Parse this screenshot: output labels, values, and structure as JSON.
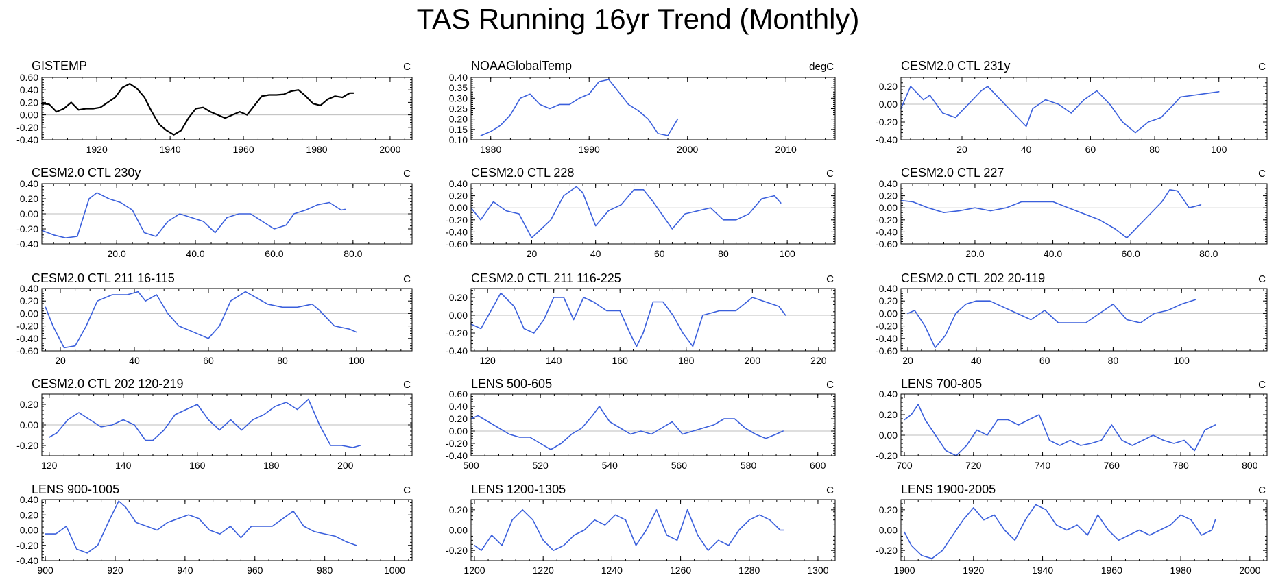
{
  "title": "TAS Running 16yr Trend (Monthly)",
  "colors": {
    "observed": "#000000",
    "model": "#3a5fdc",
    "zero": "#bdbdbd"
  },
  "chart_data": [
    {
      "type": "line",
      "title": "GISTEMP",
      "unit": "C",
      "color": "#000000",
      "xlim": [
        1905,
        2006
      ],
      "ylim": [
        -0.4,
        0.6
      ],
      "xticks": [
        1920,
        1940,
        1960,
        1980,
        2000
      ],
      "xdec": 0,
      "yticks": [
        -0.4,
        -0.2,
        0.0,
        0.2,
        0.4,
        0.6
      ],
      "ydec": 2,
      "x": [
        1905,
        1907,
        1909,
        1911,
        1913,
        1915,
        1917,
        1919,
        1921,
        1923,
        1925,
        1927,
        1929,
        1931,
        1933,
        1935,
        1937,
        1939,
        1941,
        1943,
        1945,
        1947,
        1949,
        1951,
        1953,
        1955,
        1957,
        1959,
        1961,
        1963,
        1965,
        1967,
        1969,
        1971,
        1973,
        1975,
        1977,
        1979,
        1981,
        1983,
        1985,
        1987,
        1989,
        1990
      ],
      "y": [
        0.18,
        0.17,
        0.05,
        0.1,
        0.2,
        0.08,
        0.1,
        0.1,
        0.12,
        0.2,
        0.28,
        0.44,
        0.5,
        0.42,
        0.28,
        0.05,
        -0.15,
        -0.25,
        -0.32,
        -0.25,
        -0.05,
        0.1,
        0.12,
        0.05,
        0.0,
        -0.05,
        0.0,
        0.05,
        0.0,
        0.15,
        0.3,
        0.32,
        0.32,
        0.33,
        0.38,
        0.4,
        0.3,
        0.18,
        0.15,
        0.25,
        0.3,
        0.28,
        0.35,
        0.35
      ]
    },
    {
      "type": "line",
      "title": "NOAAGlobalTemp",
      "unit": "degC",
      "color": "#3a5fdc",
      "xlim": [
        1978,
        2015
      ],
      "ylim": [
        0.1,
        0.4
      ],
      "xticks": [
        1980,
        1990,
        2000,
        2010
      ],
      "xdec": 0,
      "yticks": [
        0.1,
        0.15,
        0.2,
        0.25,
        0.3,
        0.35,
        0.4
      ],
      "ydec": 2,
      "x": [
        1979,
        1980,
        1981,
        1982,
        1983,
        1984,
        1985,
        1986,
        1987,
        1988,
        1989,
        1990,
        1991,
        1992,
        1993,
        1994,
        1995,
        1996,
        1997,
        1998,
        1999
      ],
      "y": [
        0.12,
        0.14,
        0.17,
        0.22,
        0.3,
        0.32,
        0.27,
        0.25,
        0.27,
        0.27,
        0.3,
        0.32,
        0.38,
        0.39,
        0.33,
        0.27,
        0.24,
        0.2,
        0.13,
        0.12,
        0.2
      ]
    },
    {
      "type": "line",
      "title": "CESM2.0 CTL 231y",
      "unit": "C",
      "color": "#3a5fdc",
      "xlim": [
        1,
        115
      ],
      "ylim": [
        -0.4,
        0.3
      ],
      "xticks": [
        20,
        40,
        60,
        80,
        100
      ],
      "xdec": 0,
      "yticks": [
        -0.4,
        -0.2,
        0.0,
        0.2
      ],
      "ydec": 2,
      "x": [
        1,
        4,
        8,
        10,
        14,
        18,
        22,
        26,
        28,
        32,
        36,
        40,
        42,
        46,
        50,
        54,
        58,
        62,
        66,
        70,
        74,
        78,
        82,
        86,
        88,
        92,
        96,
        100
      ],
      "y": [
        -0.05,
        0.2,
        0.05,
        0.1,
        -0.1,
        -0.15,
        0.0,
        0.15,
        0.2,
        0.05,
        -0.1,
        -0.25,
        -0.05,
        0.05,
        0.0,
        -0.1,
        0.05,
        0.15,
        0.0,
        -0.2,
        -0.32,
        -0.2,
        -0.15,
        0.0,
        0.08,
        0.1,
        0.12,
        0.14
      ]
    },
    {
      "type": "line",
      "title": "CESM2.0 CTL 230y",
      "unit": "C",
      "color": "#3a5fdc",
      "xlim": [
        1,
        95
      ],
      "ylim": [
        -0.4,
        0.4
      ],
      "xticks": [
        20.0,
        40.0,
        60.0,
        80.0
      ],
      "xdec": 1,
      "yticks": [
        -0.4,
        -0.2,
        0.0,
        0.2,
        0.4
      ],
      "ydec": 2,
      "x": [
        1,
        4,
        7,
        10,
        13,
        15,
        18,
        21,
        24,
        27,
        30,
        33,
        36,
        39,
        42,
        45,
        48,
        51,
        54,
        57,
        60,
        63,
        65,
        68,
        71,
        74,
        77,
        78
      ],
      "y": [
        -0.22,
        -0.28,
        -0.32,
        -0.3,
        0.2,
        0.28,
        0.2,
        0.15,
        0.05,
        -0.25,
        -0.3,
        -0.1,
        0.0,
        -0.05,
        -0.1,
        -0.25,
        -0.05,
        0.0,
        0.0,
        -0.1,
        -0.2,
        -0.15,
        0.0,
        0.05,
        0.12,
        0.15,
        0.05,
        0.06
      ]
    },
    {
      "type": "line",
      "title": "CESM2.0 CTL 228",
      "unit": "C",
      "color": "#3a5fdc",
      "xlim": [
        1,
        115
      ],
      "ylim": [
        -0.6,
        0.4
      ],
      "xticks": [
        20,
        40,
        60,
        80,
        100
      ],
      "xdec": 0,
      "yticks": [
        -0.6,
        -0.4,
        -0.2,
        0.0,
        0.2,
        0.4
      ],
      "ydec": 2,
      "x": [
        1,
        4,
        8,
        12,
        16,
        20,
        23,
        26,
        30,
        34,
        36,
        40,
        44,
        48,
        52,
        55,
        58,
        62,
        64,
        68,
        72,
        76,
        80,
        84,
        88,
        92,
        96,
        98
      ],
      "y": [
        0.0,
        -0.2,
        0.1,
        -0.05,
        -0.1,
        -0.5,
        -0.35,
        -0.2,
        0.2,
        0.35,
        0.25,
        -0.3,
        -0.05,
        0.05,
        0.3,
        0.3,
        0.1,
        -0.2,
        -0.35,
        -0.1,
        -0.05,
        0.0,
        -0.2,
        -0.2,
        -0.1,
        0.15,
        0.2,
        0.08
      ]
    },
    {
      "type": "line",
      "title": "CESM2.0 CTL 227",
      "unit": "C",
      "color": "#3a5fdc",
      "xlim": [
        1,
        95
      ],
      "ylim": [
        -0.6,
        0.4
      ],
      "xticks": [
        20.0,
        40.0,
        60.0,
        80.0
      ],
      "xdec": 1,
      "yticks": [
        -0.6,
        -0.4,
        -0.2,
        0.0,
        0.2,
        0.4
      ],
      "ydec": 2,
      "x": [
        1,
        4,
        8,
        12,
        16,
        20,
        24,
        28,
        32,
        36,
        40,
        44,
        48,
        52,
        56,
        59,
        62,
        65,
        68,
        70,
        72,
        75,
        78
      ],
      "y": [
        0.12,
        0.1,
        0.0,
        -0.08,
        -0.05,
        0.0,
        -0.05,
        0.0,
        0.1,
        0.1,
        0.1,
        0.0,
        -0.1,
        -0.2,
        -0.35,
        -0.5,
        -0.3,
        -0.1,
        0.1,
        0.3,
        0.28,
        0.0,
        0.05
      ]
    },
    {
      "type": "line",
      "title": "CESM2.0 CTL 211 16-115",
      "unit": "C",
      "color": "#3a5fdc",
      "xlim": [
        15,
        115
      ],
      "ylim": [
        -0.6,
        0.4
      ],
      "xticks": [
        20,
        40,
        60,
        80,
        100
      ],
      "xdec": 0,
      "yticks": [
        -0.6,
        -0.4,
        -0.2,
        0.0,
        0.2,
        0.4
      ],
      "ydec": 2,
      "x": [
        16,
        18,
        21,
        24,
        27,
        30,
        34,
        38,
        41,
        43,
        46,
        49,
        52,
        56,
        60,
        63,
        66,
        70,
        73,
        76,
        80,
        84,
        88,
        90,
        94,
        98,
        100
      ],
      "y": [
        0.1,
        -0.2,
        -0.55,
        -0.52,
        -0.2,
        0.2,
        0.3,
        0.3,
        0.35,
        0.2,
        0.3,
        0.0,
        -0.2,
        -0.3,
        -0.4,
        -0.2,
        0.2,
        0.35,
        0.25,
        0.15,
        0.1,
        0.1,
        0.15,
        0.05,
        -0.2,
        -0.25,
        -0.3
      ]
    },
    {
      "type": "line",
      "title": "CESM2.0 CTL 211 116-225",
      "unit": "C",
      "color": "#3a5fdc",
      "xlim": [
        115,
        225
      ],
      "ylim": [
        -0.4,
        0.3
      ],
      "xticks": [
        120,
        140,
        160,
        180,
        200,
        220
      ],
      "xdec": 0,
      "yticks": [
        -0.4,
        -0.2,
        0.0,
        0.2
      ],
      "ydec": 2,
      "x": [
        115,
        118,
        121,
        124,
        128,
        131,
        134,
        137,
        140,
        143,
        146,
        149,
        152,
        156,
        160,
        163,
        165,
        167,
        170,
        173,
        176,
        179,
        182,
        185,
        190,
        195,
        200,
        204,
        208,
        210
      ],
      "y": [
        -0.1,
        -0.15,
        0.05,
        0.25,
        0.1,
        -0.15,
        -0.2,
        -0.05,
        0.2,
        0.2,
        -0.05,
        0.2,
        0.15,
        0.05,
        0.05,
        -0.2,
        -0.35,
        -0.2,
        0.15,
        0.15,
        0.0,
        -0.2,
        -0.35,
        0.0,
        0.05,
        0.05,
        0.2,
        0.15,
        0.1,
        0.0
      ]
    },
    {
      "type": "line",
      "title": "CESM2.0 CTL 202 20-119",
      "unit": "C",
      "color": "#3a5fdc",
      "xlim": [
        18,
        125
      ],
      "ylim": [
        -0.6,
        0.4
      ],
      "xticks": [
        20,
        40,
        60,
        80,
        100
      ],
      "xdec": 0,
      "yticks": [
        -0.6,
        -0.4,
        -0.2,
        0.0,
        0.2,
        0.4
      ],
      "ydec": 2,
      "x": [
        20,
        22,
        25,
        28,
        31,
        34,
        37,
        40,
        44,
        48,
        52,
        56,
        60,
        64,
        68,
        72,
        76,
        80,
        84,
        88,
        92,
        96,
        100,
        104
      ],
      "y": [
        0.0,
        0.05,
        -0.2,
        -0.55,
        -0.35,
        0.0,
        0.15,
        0.2,
        0.2,
        0.1,
        0.0,
        -0.1,
        0.05,
        -0.15,
        -0.15,
        -0.15,
        0.0,
        0.15,
        -0.1,
        -0.15,
        0.0,
        0.05,
        0.15,
        0.22
      ]
    },
    {
      "type": "line",
      "title": "CESM2.0 CTL 202 120-219",
      "unit": "C",
      "color": "#3a5fdc",
      "xlim": [
        118,
        218
      ],
      "ylim": [
        -0.3,
        0.3
      ],
      "xticks": [
        120,
        140,
        160,
        180,
        200
      ],
      "xdec": 0,
      "yticks": [
        -0.2,
        0.0,
        0.2
      ],
      "ydec": 2,
      "x": [
        120,
        122,
        125,
        128,
        131,
        134,
        137,
        140,
        143,
        146,
        148,
        151,
        154,
        157,
        160,
        163,
        166,
        169,
        172,
        175,
        178,
        181,
        184,
        187,
        190,
        193,
        196,
        199,
        202,
        204
      ],
      "y": [
        -0.12,
        -0.08,
        0.05,
        0.12,
        0.05,
        -0.02,
        0.0,
        0.05,
        0.0,
        -0.15,
        -0.15,
        -0.05,
        0.1,
        0.15,
        0.2,
        0.05,
        -0.05,
        0.05,
        -0.05,
        0.05,
        0.1,
        0.18,
        0.22,
        0.15,
        0.25,
        0.0,
        -0.2,
        -0.2,
        -0.22,
        -0.2
      ]
    },
    {
      "type": "line",
      "title": "LENS 500-605",
      "unit": "C",
      "color": "#3a5fdc",
      "xlim": [
        500,
        605
      ],
      "ylim": [
        -0.4,
        0.6
      ],
      "xticks": [
        500,
        520,
        540,
        560,
        580,
        600
      ],
      "xdec": 0,
      "yticks": [
        -0.4,
        -0.2,
        0.0,
        0.2,
        0.4,
        0.6
      ],
      "ydec": 2,
      "x": [
        500,
        502,
        505,
        508,
        511,
        514,
        517,
        520,
        523,
        526,
        529,
        532,
        535,
        537,
        540,
        543,
        546,
        549,
        552,
        555,
        558,
        561,
        564,
        567,
        570,
        573,
        576,
        579,
        582,
        585,
        588,
        590
      ],
      "y": [
        0.2,
        0.25,
        0.15,
        0.05,
        -0.05,
        -0.1,
        -0.1,
        -0.2,
        -0.3,
        -0.2,
        -0.05,
        0.05,
        0.25,
        0.4,
        0.15,
        0.05,
        -0.05,
        0.0,
        -0.05,
        0.05,
        0.15,
        -0.05,
        0.0,
        0.05,
        0.1,
        0.2,
        0.2,
        0.05,
        -0.05,
        -0.12,
        -0.05,
        0.0
      ]
    },
    {
      "type": "line",
      "title": "LENS 700-805",
      "unit": "C",
      "color": "#3a5fdc",
      "xlim": [
        699,
        805
      ],
      "ylim": [
        -0.2,
        0.4
      ],
      "xticks": [
        700,
        720,
        740,
        760,
        780,
        800
      ],
      "xdec": 0,
      "yticks": [
        -0.2,
        0.0,
        0.2,
        0.4
      ],
      "ydec": 2,
      "x": [
        700,
        702,
        704,
        706,
        709,
        712,
        715,
        718,
        721,
        724,
        727,
        730,
        733,
        736,
        739,
        742,
        745,
        748,
        751,
        754,
        757,
        760,
        763,
        766,
        769,
        772,
        775,
        778,
        781,
        784,
        787,
        790
      ],
      "y": [
        0.15,
        0.2,
        0.3,
        0.15,
        0.0,
        -0.15,
        -0.2,
        -0.1,
        0.05,
        0.0,
        0.15,
        0.15,
        0.1,
        0.15,
        0.2,
        -0.05,
        -0.1,
        -0.05,
        -0.1,
        -0.08,
        -0.05,
        0.1,
        -0.05,
        -0.1,
        -0.05,
        0.0,
        -0.05,
        -0.08,
        -0.05,
        -0.15,
        0.05,
        0.1
      ]
    },
    {
      "type": "line",
      "title": "LENS 900-1005",
      "unit": "C",
      "color": "#3a5fdc",
      "xlim": [
        899,
        1005
      ],
      "ylim": [
        -0.4,
        0.4
      ],
      "xticks": [
        900,
        920,
        940,
        960,
        980,
        1000
      ],
      "xdec": 0,
      "yticks": [
        -0.4,
        -0.2,
        0.0,
        0.2,
        0.4
      ],
      "ydec": 2,
      "x": [
        900,
        903,
        906,
        909,
        912,
        915,
        918,
        921,
        923,
        926,
        929,
        932,
        935,
        938,
        941,
        944,
        947,
        950,
        953,
        956,
        959,
        962,
        965,
        968,
        971,
        974,
        977,
        980,
        983,
        986,
        989
      ],
      "y": [
        -0.05,
        -0.05,
        0.05,
        -0.25,
        -0.3,
        -0.2,
        0.1,
        0.38,
        0.3,
        0.1,
        0.05,
        0.0,
        0.1,
        0.15,
        0.2,
        0.15,
        0.0,
        -0.05,
        0.05,
        -0.1,
        0.05,
        0.05,
        0.05,
        0.15,
        0.25,
        0.05,
        -0.02,
        -0.05,
        -0.08,
        -0.15,
        -0.2
      ]
    },
    {
      "type": "line",
      "title": "LENS 1200-1305",
      "unit": "C",
      "color": "#3a5fdc",
      "xlim": [
        1199,
        1305
      ],
      "ylim": [
        -0.3,
        0.3
      ],
      "xticks": [
        1200,
        1220,
        1240,
        1260,
        1280,
        1300
      ],
      "xdec": 0,
      "yticks": [
        -0.2,
        0.0,
        0.2
      ],
      "ydec": 2,
      "x": [
        1200,
        1202,
        1205,
        1208,
        1211,
        1214,
        1217,
        1220,
        1223,
        1226,
        1229,
        1232,
        1235,
        1238,
        1241,
        1244,
        1247,
        1250,
        1253,
        1256,
        1259,
        1262,
        1265,
        1268,
        1271,
        1274,
        1277,
        1280,
        1283,
        1286,
        1289,
        1290
      ],
      "y": [
        -0.15,
        -0.2,
        -0.05,
        -0.15,
        0.1,
        0.2,
        0.1,
        -0.1,
        -0.2,
        -0.15,
        -0.05,
        0.0,
        0.1,
        0.05,
        0.15,
        0.1,
        -0.15,
        0.0,
        0.2,
        -0.05,
        -0.1,
        0.2,
        -0.05,
        -0.2,
        -0.1,
        -0.15,
        0.0,
        0.1,
        0.15,
        0.1,
        0.0,
        0.0
      ]
    },
    {
      "type": "line",
      "title": "LENS 1900-2005",
      "unit": "C",
      "color": "#3a5fdc",
      "xlim": [
        1899,
        2005
      ],
      "ylim": [
        -0.3,
        0.3
      ],
      "xticks": [
        1900,
        1920,
        1940,
        1960,
        1980,
        2000
      ],
      "xdec": 0,
      "yticks": [
        -0.2,
        0.0,
        0.2
      ],
      "ydec": 2,
      "x": [
        1900,
        1902,
        1905,
        1908,
        1911,
        1914,
        1917,
        1920,
        1923,
        1926,
        1929,
        1932,
        1935,
        1938,
        1941,
        1944,
        1947,
        1950,
        1953,
        1956,
        1959,
        1962,
        1965,
        1968,
        1971,
        1974,
        1977,
        1980,
        1983,
        1986,
        1989,
        1990
      ],
      "y": [
        -0.02,
        -0.15,
        -0.25,
        -0.28,
        -0.2,
        -0.05,
        0.1,
        0.22,
        0.1,
        0.15,
        0.0,
        -0.1,
        0.1,
        0.25,
        0.2,
        0.05,
        0.0,
        0.05,
        -0.05,
        0.15,
        0.0,
        -0.1,
        -0.05,
        0.0,
        -0.05,
        0.0,
        0.05,
        0.15,
        0.1,
        -0.05,
        0.0,
        0.1
      ]
    }
  ]
}
